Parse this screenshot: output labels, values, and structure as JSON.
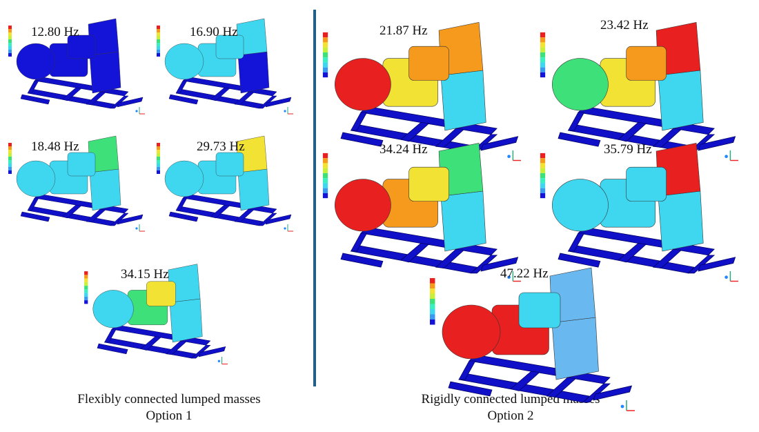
{
  "left_group": {
    "caption_line1": "Flexibly connected lumped masses",
    "caption_line2": "Option 1",
    "panels": [
      {
        "frequency": "12.80 Hz"
      },
      {
        "frequency": "16.90 Hz"
      },
      {
        "frequency": "18.48 Hz"
      },
      {
        "frequency": "29.73 Hz"
      },
      {
        "frequency": "34.15 Hz"
      }
    ]
  },
  "right_group": {
    "caption_line1": "Rigidly connected lumped masses",
    "caption_line2": "Option 2",
    "panels": [
      {
        "frequency": "21.87 Hz"
      },
      {
        "frequency": "23.42 Hz"
      },
      {
        "frequency": "34.24 Hz"
      },
      {
        "frequency": "35.79 Hz"
      },
      {
        "frequency": "47.22 Hz"
      }
    ]
  }
}
